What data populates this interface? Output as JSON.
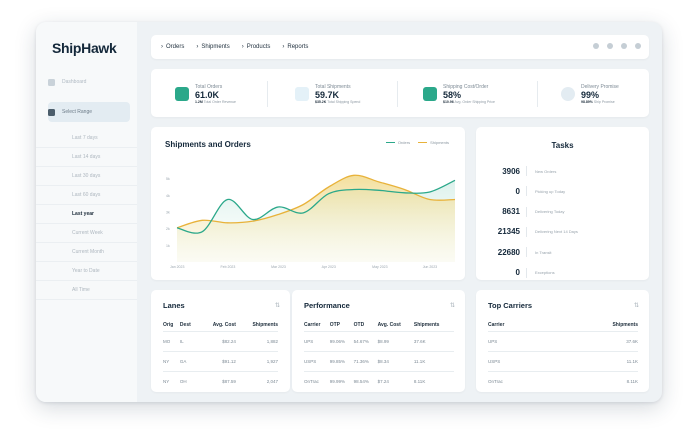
{
  "sidebar": {
    "logo": "ShipHawk",
    "items": [
      {
        "label": "Dashboard"
      },
      {
        "label": "Select Range"
      }
    ],
    "ranges": [
      "Last 7 days",
      "Last 14 days",
      "Last 30 days",
      "Last 60 days",
      "Last year",
      "Current Week",
      "Current Month",
      "Year to Date",
      "All Time"
    ],
    "selected_range": "Last year"
  },
  "topnav": {
    "crumbs": [
      "Orders",
      "Shipments",
      "Products",
      "Reports"
    ],
    "icons": [
      "bell-icon",
      "gear-icon",
      "phone-icon",
      "user-icon"
    ]
  },
  "stats": [
    {
      "label": "Total Orders",
      "value": "61.0K",
      "sub_value": "1.2M",
      "sub_label": "Total Order Revenue",
      "icon": "document-icon",
      "color": "#2ba88a"
    },
    {
      "label": "Total Shipments",
      "value": "59.7K",
      "sub_value": "$35.2K",
      "sub_label": "Total Shipping Spend",
      "icon": "transfer-icon",
      "color": "#5aa7d6"
    },
    {
      "label": "Shipping Cost/Order",
      "value": "58%",
      "sub_value": "$10.96",
      "sub_label": "Avg. Order Shipping Price",
      "icon": "dollar-icon",
      "color": "#2ba88a"
    },
    {
      "label": "Delivery Promise",
      "value": "99%",
      "sub_value": "98.89%",
      "sub_label": "Ship Promise",
      "icon": "pie-icon",
      "color": "#1f3a4f"
    }
  ],
  "chart": {
    "title": "Shipments and Orders",
    "colors": {
      "orders": "#2ba88a",
      "shipments": "#e8b23a"
    }
  },
  "chart_data": {
    "type": "area",
    "title": "Shipments and Orders",
    "xlabel": "",
    "ylabel": "",
    "x_ticks": [
      "Jan 2023",
      "Feb 2023",
      "Mar 2023",
      "Apr 2023",
      "May 2023",
      "Jun 2023"
    ],
    "y_ticks": [
      "5k",
      "4k",
      "3k",
      "2k",
      "1k"
    ],
    "ylim": [
      0,
      6000
    ],
    "x": [
      0,
      0.5,
      1,
      1.5,
      2,
      2.5,
      3,
      3.5,
      4,
      4.5,
      5,
      5.5
    ],
    "series": [
      {
        "name": "Orders",
        "values": [
          2050,
          1820,
          3750,
          2550,
          3300,
          2950,
          4100,
          4350,
          4300,
          4150,
          4200,
          4900
        ]
      },
      {
        "name": "Shipments",
        "values": [
          2050,
          2500,
          2350,
          2450,
          2850,
          3450,
          4500,
          5200,
          4800,
          4350,
          3750,
          3750
        ]
      }
    ],
    "legend": "top-right",
    "grid": false
  },
  "tasks": {
    "title": "Tasks",
    "rows": [
      {
        "value": "3906",
        "label": "New Orders"
      },
      {
        "value": "0",
        "label": "Picking up Today"
      },
      {
        "value": "8631",
        "label": "Delivering Today"
      },
      {
        "value": "21345",
        "label": "Delivering Next 14 Days"
      },
      {
        "value": "22680",
        "label": "In Transit"
      },
      {
        "value": "0",
        "label": "Exceptions"
      }
    ]
  },
  "lanes": {
    "title": "Lanes",
    "columns": [
      "Orig",
      "Dest",
      "Avg. Cost",
      "Shipments"
    ],
    "rows": [
      [
        "MO",
        "IL",
        "$82.24",
        "1,882"
      ],
      [
        "NY",
        "GA",
        "$91.12",
        "1,927"
      ],
      [
        "NY",
        "OH",
        "$87.59",
        "2,047"
      ]
    ]
  },
  "performance": {
    "title": "Performance",
    "columns": [
      "Carrier",
      "OTP",
      "OTD",
      "Avg. Cost",
      "Shipments"
    ],
    "rows": [
      [
        "UPS",
        "99.06%",
        "54.67%",
        "$8.99",
        "37.6K"
      ],
      [
        "USPS",
        "99.85%",
        "71.36%",
        "$8.34",
        "11.1K"
      ],
      [
        "OnTrac",
        "99.99%",
        "98.54%",
        "$7.24",
        "8.11K"
      ]
    ]
  },
  "carriers": {
    "title": "Top Carriers",
    "columns": [
      "Carrier",
      "Shipments"
    ],
    "rows": [
      [
        "UPS",
        "37.6K"
      ],
      [
        "USPS",
        "11.1K"
      ],
      [
        "OnTrac",
        "8.11K"
      ]
    ]
  }
}
